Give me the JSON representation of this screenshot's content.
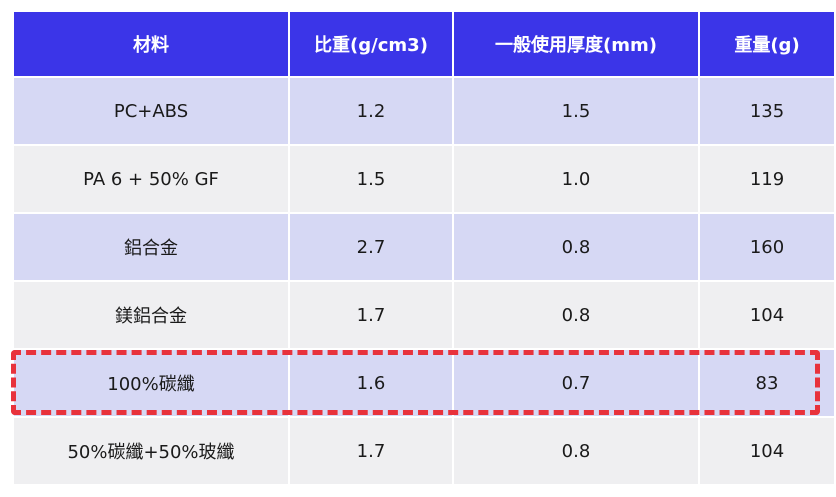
{
  "chart_data": {
    "type": "table",
    "columns": [
      "材料",
      "比重(g/cm3)",
      "一般使用厚度(mm)",
      "重量(g)"
    ],
    "rows": [
      [
        "PC+ABS",
        "1.2",
        "1.5",
        "135"
      ],
      [
        "PA 6 + 50% GF",
        "1.5",
        "1.0",
        "119"
      ],
      [
        "鋁合金",
        "2.7",
        "0.8",
        "160"
      ],
      [
        "鎂鋁合金",
        "1.7",
        "0.8",
        "104"
      ],
      [
        "100%碳纖",
        "1.6",
        "0.7",
        "83"
      ],
      [
        "50%碳纖+50%玻纖",
        "1.7",
        "0.8",
        "104"
      ]
    ],
    "highlighted_row": 4
  },
  "colors": {
    "header_bg": "#3b35e8",
    "header_text": "#ffffff",
    "row_odd_bg": "#d6d8f4",
    "row_even_bg": "#efeff1",
    "highlight_border": "#e8323c"
  }
}
